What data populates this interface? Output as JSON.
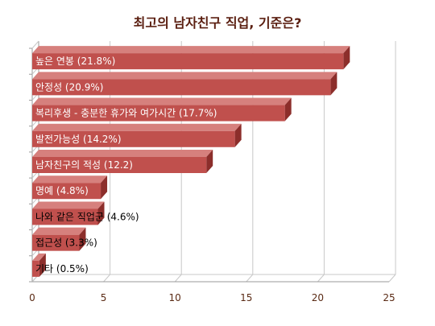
{
  "chart_data": {
    "type": "bar",
    "orientation": "horizontal",
    "style": "3d",
    "title": "최고의 남자친구 직업, 기준은?",
    "categories": [
      "높은 연봉 (21.8%)",
      "안정성 (20.9%)",
      "복리후생 - 충분한 휴가와 여가시간 (17.7%)",
      "발전가능성 (14.2%)",
      "남자친구의 적성 (12.2)",
      "명예 (4.8%)",
      "나와 같은 직업군 (4.6%)",
      "접근성 (3.3%)",
      "기타 (0.5%)"
    ],
    "values": [
      21.8,
      20.9,
      17.7,
      14.2,
      12.2,
      4.8,
      4.6,
      3.3,
      0.5
    ],
    "xlim": [
      0,
      25
    ],
    "xticks": [
      "0",
      "5",
      "10",
      "15",
      "20",
      "25"
    ],
    "xlabel": "",
    "ylabel": "",
    "legend": "none",
    "grid": true,
    "colors": {
      "bar_front": "#c0504d",
      "bar_top": "#d6807d",
      "bar_side": "#8c2e2b",
      "gridline": "#c8c8c8",
      "title": "#5a1e10",
      "tick_text": "#5a2a14",
      "label_on_bar": "#ffffff",
      "label_off_bar": "#000000"
    }
  }
}
